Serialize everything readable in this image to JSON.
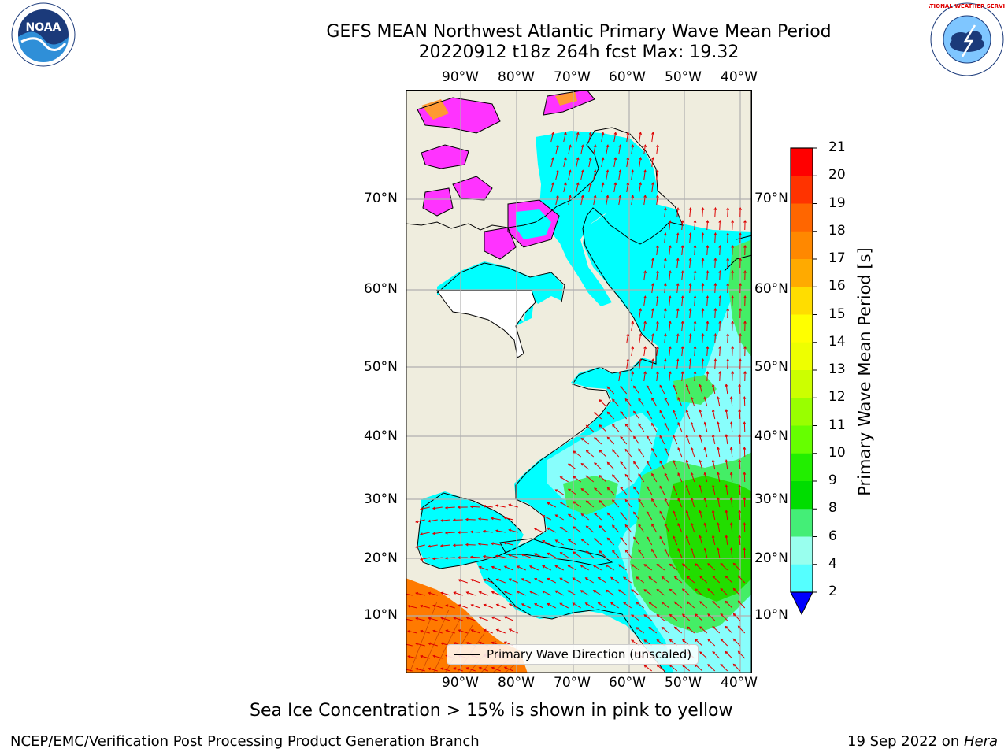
{
  "title": {
    "line1": "GEFS MEAN Northwest Atlantic Primary Wave Mean Period",
    "line2": "20220912 t18z 264h fcst   Max: 19.32"
  },
  "logos": {
    "noaa_text": "NOAA",
    "nws_text": "NATIONAL WEATHER SERVICE"
  },
  "map": {
    "lon_labels": [
      "90°W",
      "80°W",
      "70°W",
      "60°W",
      "50°W",
      "40°W"
    ],
    "lat_labels": [
      "70°N",
      "60°N",
      "50°N",
      "40°N",
      "30°N",
      "20°N",
      "10°N"
    ],
    "legend_label": "Primary Wave Direction (unscaled)",
    "colors": {
      "land": "#efedde",
      "ocean_low": "#00ffff",
      "ocean_mid": "#7ffdfd",
      "ocean_green": "#43f043",
      "tropic_orange": "#ff8c00",
      "sea_ice": "#ff33ff",
      "arrow": "#dd0000"
    }
  },
  "colorbar": {
    "label": "Primary Wave Mean Period [s]",
    "ticks": [
      "2",
      "4",
      "6",
      "8",
      "9",
      "10",
      "11",
      "12",
      "13",
      "14",
      "15",
      "16",
      "17",
      "18",
      "19",
      "20",
      "21"
    ],
    "colors": [
      "#ff0000",
      "#ff3300",
      "#ff6600",
      "#ff8800",
      "#ffaa00",
      "#ffdd00",
      "#ffff00",
      "#eeff00",
      "#ccff00",
      "#99ff00",
      "#66ff00",
      "#22ee00",
      "#00dd00",
      "#44ee77",
      "#99ffee",
      "#55ffff",
      "#00ffff",
      "#0077ff"
    ],
    "extend_color": "#0000ff"
  },
  "caption": "Sea Ice Concentration > 15% is shown in pink to yellow",
  "footer": {
    "left": "NCEP/EMC/Verification Post Processing Product Generation Branch",
    "right_date": "19 Sep 2022 on ",
    "right_machine": "Hera"
  }
}
